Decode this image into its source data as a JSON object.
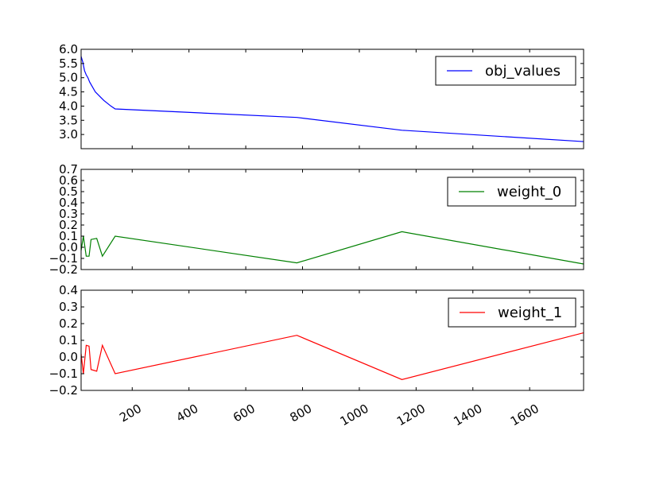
{
  "chart_data": [
    {
      "type": "line",
      "series": [
        {
          "name": "obj_values",
          "color": "#0000ff",
          "x": [
            20,
            26,
            32,
            38,
            44,
            50,
            70,
            100,
            125,
            140,
            780,
            1150,
            1790
          ],
          "y": [
            5.75,
            5.55,
            5.25,
            5.1,
            5.0,
            4.85,
            4.5,
            4.2,
            4.0,
            3.9,
            3.6,
            3.15,
            2.75
          ]
        }
      ],
      "legend": "top-right",
      "xlim": [
        20,
        1790
      ],
      "ylim": [
        2.5,
        6.0
      ],
      "yticks": [
        "3.0",
        "3.5",
        "4.0",
        "4.5",
        "5.0",
        "5.5",
        "6.0"
      ],
      "xtick_labels_visible": false,
      "grid": false
    },
    {
      "type": "line",
      "series": [
        {
          "name": "weight_0",
          "color": "#008000",
          "x": [
            20,
            28,
            38,
            48,
            55,
            75,
            95,
            140,
            780,
            1150,
            1790
          ],
          "y": [
            -0.03,
            0.1,
            -0.08,
            -0.08,
            0.07,
            0.08,
            -0.08,
            0.1,
            -0.14,
            0.14,
            -0.15
          ]
        }
      ],
      "legend": "top-right",
      "xlim": [
        20,
        1790
      ],
      "ylim": [
        -0.2,
        0.7
      ],
      "yticks": [
        "-0.2",
        "-0.1",
        "0.0",
        "0.1",
        "0.2",
        "0.3",
        "0.4",
        "0.5",
        "0.6",
        "0.7"
      ],
      "xtick_labels_visible": false,
      "grid": false
    },
    {
      "type": "line",
      "series": [
        {
          "name": "weight_1",
          "color": "#ff0000",
          "x": [
            20,
            28,
            38,
            48,
            55,
            75,
            95,
            140,
            780,
            1150,
            1790
          ],
          "y": [
            0.02,
            -0.1,
            0.07,
            0.065,
            -0.075,
            -0.085,
            0.07,
            -0.1,
            0.13,
            -0.135,
            0.145
          ]
        }
      ],
      "legend": "top-right",
      "xlim": [
        20,
        1790
      ],
      "ylim": [
        -0.2,
        0.4
      ],
      "yticks": [
        "-0.2",
        "-0.1",
        "0.0",
        "0.1",
        "0.2",
        "0.3",
        "0.4"
      ],
      "xticks": [
        "200",
        "400",
        "600",
        "800",
        "1000",
        "1200",
        "1400",
        "1600"
      ],
      "xtick_rotation_deg": 30,
      "grid": false
    }
  ]
}
